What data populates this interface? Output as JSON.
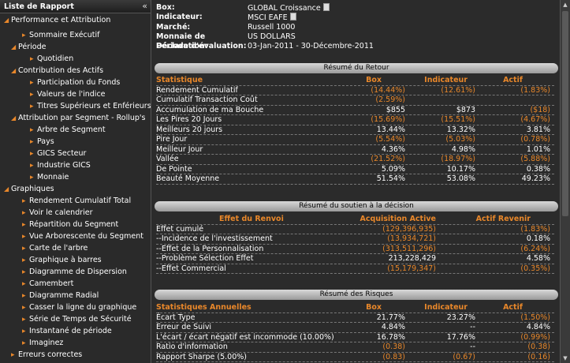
{
  "sidebar": {
    "title": "Liste de Rapport",
    "collapse_icon": "«",
    "items": [
      {
        "label": "Performance et Attribution",
        "type": "open"
      },
      {
        "label": "Sommaire Exécutif",
        "type": "leaf"
      },
      {
        "label": "Période",
        "type": "open"
      },
      {
        "label": "Quotidien",
        "type": "leaf"
      },
      {
        "label": "Contribution des Actifs",
        "type": "open"
      },
      {
        "label": "Participation du Fonds",
        "type": "leaf"
      },
      {
        "label": "Valeurs de l'indice",
        "type": "leaf"
      },
      {
        "label": "Titres Supérieurs et Enférieurs",
        "type": "leaf"
      },
      {
        "label": "Attribution par Segment - Rollup's",
        "type": "open"
      },
      {
        "label": "Arbre de Segment",
        "type": "leaf"
      },
      {
        "label": "Pays",
        "type": "leaf"
      },
      {
        "label": "GICS Secteur",
        "type": "leaf"
      },
      {
        "label": "Industrie GICS",
        "type": "leaf"
      },
      {
        "label": "Monnaie",
        "type": "leaf"
      },
      {
        "label": "Graphiques",
        "type": "open"
      },
      {
        "label": "Rendement Cumulatif Total",
        "type": "leaf"
      },
      {
        "label": "Voir le calendrier",
        "type": "leaf"
      },
      {
        "label": "Répartition du Segment",
        "type": "leaf"
      },
      {
        "label": "Vue Arborescente du Segment",
        "type": "leaf"
      },
      {
        "label": "Carte de l'arbre",
        "type": "leaf"
      },
      {
        "label": "Graphique à barres",
        "type": "leaf"
      },
      {
        "label": "Diagramme de Dispersion",
        "type": "leaf"
      },
      {
        "label": "Camembert",
        "type": "leaf"
      },
      {
        "label": "Diagramme Radial",
        "type": "leaf"
      },
      {
        "label": "Casser la ligne du graphique",
        "type": "leaf"
      },
      {
        "label": "Série de Temps de Sécurité",
        "type": "leaf"
      },
      {
        "label": "Instantané de période",
        "type": "leaf"
      },
      {
        "label": "Imaginez",
        "type": "leaf"
      },
      {
        "label": "Erreurs correctes",
        "type": "leaf"
      }
    ]
  },
  "info": {
    "box_label": "Box:",
    "box_value": "GLOBAL Croissance",
    "index_label": "Indicateur:",
    "index_value": "MSCI EAFE",
    "market_label": "Marché:",
    "market_value": "Russell 1000",
    "currency_label": "Monnaie de Déclaration:",
    "currency_value": "US DOLLARS",
    "period_label": "Période d'évaluation:",
    "period_value": "03-Jan-2011 - 30-Décembre-2011"
  },
  "return_summary": {
    "title": "Résumé du Retour",
    "headers": [
      "Statistique",
      "Box",
      "Indicateur",
      "Actif"
    ],
    "rows": [
      [
        "Rendement Cumulatif",
        "(14.44%)",
        "(12.61%)",
        "(1.83%)"
      ],
      [
        "Cumulatif Transaction Coût",
        "(2.59%)",
        "",
        ""
      ],
      [
        "Accumulation de ma Bouche",
        "$855",
        "$873",
        "($18)"
      ],
      [
        "Les Pires 20 Jours",
        "(15.69%)",
        "(15.51%)",
        "(4.67%)"
      ],
      [
        "Meilleurs 20 jours",
        "13.44%",
        "13.32%",
        "3.81%"
      ],
      [
        "Pire Jour",
        "(5.54%)",
        "(5.03%)",
        "(0.78%)"
      ],
      [
        "Meilleur Jour",
        "4.36%",
        "4.98%",
        "1.01%"
      ],
      [
        "Vallée",
        "(21.52%)",
        "(18.97%)",
        "(5.88%)"
      ],
      [
        "De Pointe",
        "5.09%",
        "10.17%",
        "0.38%"
      ],
      [
        "Beauté Moyenne",
        "51.54%",
        "53.08%",
        "49.23%"
      ]
    ]
  },
  "decision_summary": {
    "title": "Résumé du soutien à la décision",
    "headers": [
      "Effet du Renvoi",
      "Acquisition Active",
      "Actif Revenir"
    ],
    "rows": [
      [
        "Effet cumulé",
        "(129,396,935)",
        "(1.83%)"
      ],
      [
        "--Incidence de l'investissement",
        "(13,934,721)",
        "0.18%"
      ],
      [
        "--Effet de la Personnalisation",
        "(313,511,296)",
        "(6.24%)"
      ],
      [
        "--Problème Sélection Effet",
        "213,228,429",
        "4.58%"
      ],
      [
        "--Effet Commercial",
        "(15,179,347)",
        "(0.35%)"
      ]
    ]
  },
  "risk_summary": {
    "title": "Résumé des Risques",
    "headers": [
      "Statistiques Annuelles",
      "Box",
      "Indicateur",
      "Actif"
    ],
    "rows": [
      [
        "Écart Type",
        "21.77%",
        "23.27%",
        "(1.50%)"
      ],
      [
        "Erreur de Suivi",
        "4.84%",
        "--",
        "4.84%"
      ],
      [
        "L'écart / écart négatif est incommode (10.00%)",
        "16.78%",
        "17.76%",
        "(0.99%)"
      ],
      [
        "Ratio d'information",
        "(0.38)",
        "--",
        "(0.38)"
      ],
      [
        "Rapport Sharpe (5.00%)",
        "(0.83)",
        "(0.67)",
        "(0.16)"
      ]
    ]
  },
  "colors": {
    "accent": "#e8872a",
    "background": "#2b2b2b"
  }
}
